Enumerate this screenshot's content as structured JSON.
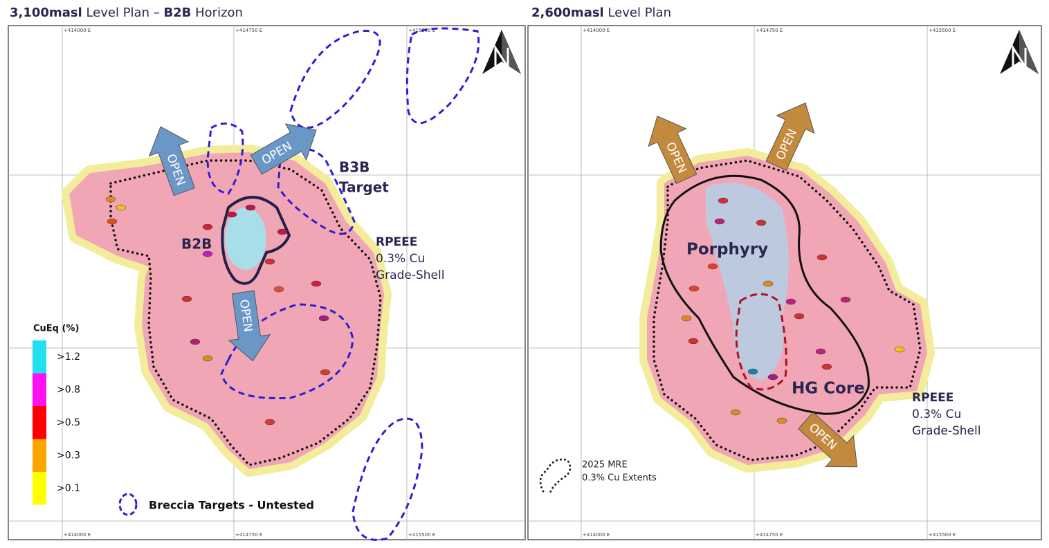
{
  "left": {
    "title": [
      "3,100masl",
      " Level Plan – ",
      "B2B",
      " Horizon"
    ],
    "eastings": [
      "+414000 E",
      "+414750 E",
      "+415500 E"
    ],
    "arrows": [
      "OPEN",
      "OPEN",
      "OPEN"
    ],
    "b3b": [
      "B3B",
      "Target"
    ],
    "b2b": "B2B",
    "grade_shell": [
      "RPEEE",
      "0.3% Cu",
      "Grade-Shell"
    ],
    "legend": {
      "title": "CuEq (%)",
      "items": [
        ">1.2",
        ">0.8",
        ">0.5",
        ">0.3",
        ">0.1"
      ]
    },
    "breccia": "Breccia Targets - Untested"
  },
  "right": {
    "title": [
      "2,600masl",
      " Level Plan"
    ],
    "eastings": [
      "+414000 E",
      "+414750 E",
      "+415500 E"
    ],
    "arrows": [
      "OPEN",
      "OPEN",
      "OPEN"
    ],
    "porphyry": "Porphyry",
    "hg_core": "HG Core",
    "grade_shell": [
      "RPEEE",
      "0.3% Cu",
      "Grade-Shell"
    ],
    "mre": [
      "2025 MRE",
      "0.3% Cu Extents"
    ]
  }
}
